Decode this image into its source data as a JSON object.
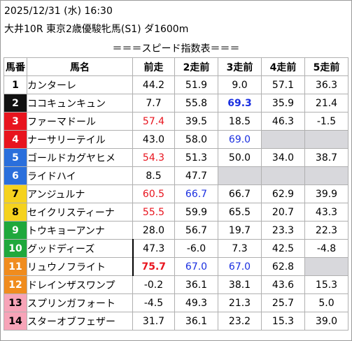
{
  "header": {
    "datetime": "2025/12/31 (水) 16:30",
    "race": "大井10R 東京2歳優駿牝馬(S1) ダ1600m",
    "subtitle": "＝＝＝スピード指数表＝＝＝"
  },
  "columns": [
    "馬番",
    "馬名",
    "前走",
    "2走前",
    "3走前",
    "4走前",
    "5走前"
  ],
  "frame_colors": {
    "1": "#ffffff",
    "2": "#111111",
    "3": "#e8141e",
    "4": "#2a6fdc",
    "5": "#f5d21e",
    "6": "#1fa83c",
    "7": "#f08c1e",
    "8": "#f7a4b8"
  },
  "rows": [
    {
      "num": "1",
      "frame": 1,
      "name": "カンターレ",
      "vals": [
        "44.2",
        "51.9",
        "9.0",
        "57.1",
        "36.3"
      ],
      "styles": [
        "",
        "",
        "",
        "",
        ""
      ]
    },
    {
      "num": "2",
      "frame": 2,
      "name": "ココキュンキュン",
      "vals": [
        "7.7",
        "55.8",
        "69.3",
        "35.9",
        "21.4"
      ],
      "styles": [
        "",
        "",
        "blue bold",
        "",
        ""
      ]
    },
    {
      "num": "3",
      "frame": 3,
      "name": "ファーマドール",
      "vals": [
        "57.4",
        "39.5",
        "18.5",
        "46.3",
        "-1.5"
      ],
      "styles": [
        "red",
        "",
        "",
        "",
        ""
      ]
    },
    {
      "num": "4",
      "frame": 3,
      "name": "ナーサリーテイル",
      "vals": [
        "43.0",
        "58.0",
        "69.0",
        "",
        ""
      ],
      "styles": [
        "",
        "",
        "blue",
        "",
        ""
      ]
    },
    {
      "num": "5",
      "frame": 4,
      "name": "ゴールドカグヤヒメ",
      "vals": [
        "54.3",
        "51.3",
        "50.0",
        "34.0",
        "38.7"
      ],
      "styles": [
        "red",
        "",
        "",
        "",
        ""
      ]
    },
    {
      "num": "6",
      "frame": 4,
      "name": "ライドハイ",
      "vals": [
        "8.5",
        "47.7",
        "",
        "",
        ""
      ],
      "styles": [
        "",
        "",
        "",
        "",
        ""
      ]
    },
    {
      "num": "7",
      "frame": 5,
      "name": "アンジュルナ",
      "vals": [
        "60.5",
        "66.7",
        "66.7",
        "62.9",
        "39.9"
      ],
      "styles": [
        "red",
        "blue",
        "",
        "",
        ""
      ]
    },
    {
      "num": "8",
      "frame": 5,
      "name": "セイクリスティーナ",
      "vals": [
        "55.5",
        "59.9",
        "65.5",
        "20.7",
        "43.3"
      ],
      "styles": [
        "red",
        "",
        "",
        "",
        ""
      ]
    },
    {
      "num": "9",
      "frame": 6,
      "name": "トウキョーアンナ",
      "vals": [
        "28.0",
        "56.7",
        "19.7",
        "23.3",
        "22.3"
      ],
      "styles": [
        "",
        "",
        "",
        "",
        ""
      ]
    },
    {
      "num": "10",
      "frame": 6,
      "name": "グッドディーズ",
      "vals": [
        "47.3",
        "-6.0",
        "7.3",
        "42.5",
        "-4.8"
      ],
      "styles": [
        "",
        "",
        "",
        "",
        ""
      ]
    },
    {
      "num": "11",
      "frame": 7,
      "name": "リュウノフライト",
      "vals": [
        "75.7",
        "67.0",
        "67.0",
        "62.8",
        ""
      ],
      "styles": [
        "red bold",
        "blue",
        "blue",
        "",
        ""
      ]
    },
    {
      "num": "12",
      "frame": 7,
      "name": "ドレインザスワンプ",
      "vals": [
        "-0.2",
        "36.1",
        "38.1",
        "43.6",
        "15.3"
      ],
      "styles": [
        "",
        "",
        "",
        "",
        ""
      ]
    },
    {
      "num": "13",
      "frame": 8,
      "name": "スプリンガフォート",
      "vals": [
        "-4.5",
        "49.3",
        "21.3",
        "25.7",
        "5.0"
      ],
      "styles": [
        "",
        "",
        "",
        "",
        ""
      ]
    },
    {
      "num": "14",
      "frame": 8,
      "name": "スターオブフェザー",
      "vals": [
        "31.7",
        "36.1",
        "23.2",
        "15.3",
        "39.0"
      ],
      "styles": [
        "",
        "",
        "",
        "",
        ""
      ]
    }
  ]
}
